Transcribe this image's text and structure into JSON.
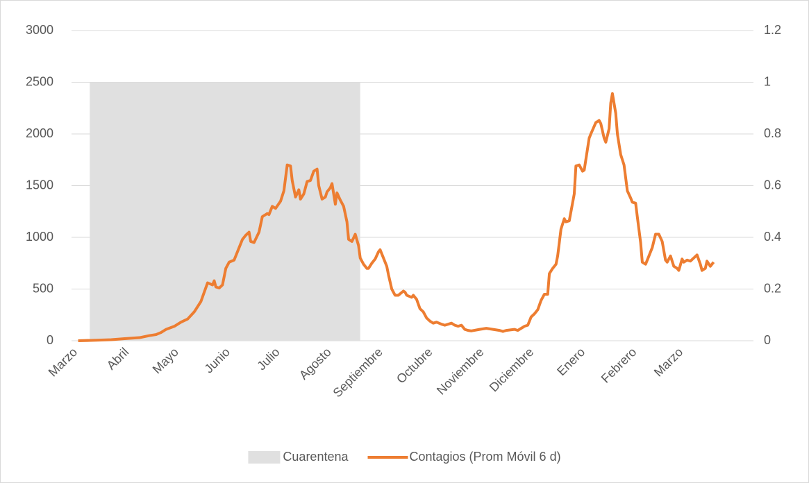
{
  "chart_data": {
    "type": "line",
    "xlim": [
      0,
      411
    ],
    "xticks": [
      {
        "value": 0,
        "label": "Marzo"
      },
      {
        "value": 31,
        "label": "Abril"
      },
      {
        "value": 61,
        "label": "Mayo"
      },
      {
        "value": 92,
        "label": "Junio"
      },
      {
        "value": 122,
        "label": "Julio"
      },
      {
        "value": 153,
        "label": "Agosto"
      },
      {
        "value": 184,
        "label": "Septiembre"
      },
      {
        "value": 214,
        "label": "Octubre"
      },
      {
        "value": 245,
        "label": "Noviembre"
      },
      {
        "value": 275,
        "label": "Diciembre"
      },
      {
        "value": 306,
        "label": "Enero"
      },
      {
        "value": 337,
        "label": "Febrero"
      },
      {
        "value": 365,
        "label": "Marzo"
      }
    ],
    "ylim": [
      0,
      3000
    ],
    "yticks": [
      0,
      500,
      1000,
      1500,
      2000,
      2500,
      3000
    ],
    "y2lim": [
      0,
      1.2
    ],
    "y2ticks": [
      0,
      0.2,
      0.4,
      0.6,
      0.8,
      1,
      1.2
    ],
    "grid": true,
    "legend": "bottom",
    "series": [
      {
        "name": "Cuarentena",
        "type": "area",
        "axis": "y2",
        "color": "#e0e0e0",
        "x": [
          11,
          174
        ],
        "values": [
          1,
          1
        ]
      },
      {
        "name": "Contagios (Prom Móvil 6 d)",
        "type": "line",
        "color": "#ed7d31",
        "x": [
          4,
          15,
          24,
          32,
          41,
          47,
          51,
          54,
          57,
          62,
          66,
          70,
          74,
          78,
          80,
          82,
          85,
          86,
          87,
          89,
          91,
          93,
          95,
          98,
          101,
          103,
          105,
          107,
          108,
          110,
          113,
          115,
          118,
          119,
          121,
          123,
          126,
          128,
          130,
          132,
          133,
          135,
          137,
          138,
          140,
          142,
          144,
          146,
          148,
          149,
          151,
          153,
          154,
          156,
          157,
          159,
          160,
          162,
          164,
          166,
          167,
          169,
          171,
          173,
          174,
          176,
          178,
          179,
          181,
          183,
          185,
          186,
          188,
          190,
          191,
          193,
          195,
          197,
          200,
          201,
          202,
          205,
          206,
          208,
          210,
          212,
          214,
          216,
          218,
          220,
          223,
          225,
          227,
          229,
          231,
          233,
          235,
          237,
          239,
          241,
          246,
          250,
          254,
          258,
          260,
          262,
          267,
          269,
          271,
          273,
          275,
          277,
          279,
          281,
          283,
          285,
          287,
          288,
          290,
          292,
          293,
          295,
          297,
          298,
          300,
          303,
          304,
          306,
          308,
          309,
          312,
          313,
          316,
          318,
          319,
          321,
          322,
          324,
          325,
          326,
          328,
          329,
          331,
          333,
          335,
          337,
          338,
          340,
          341,
          343,
          344,
          346,
          348,
          350,
          352,
          354,
          356,
          358,
          359,
          361,
          363,
          365,
          366,
          368,
          369,
          371,
          373,
          375,
          377,
          379,
          380,
          382,
          383,
          385,
          387
        ],
        "values": [
          0,
          5,
          10,
          20,
          30,
          50,
          60,
          80,
          110,
          140,
          180,
          210,
          280,
          380,
          470,
          560,
          540,
          580,
          520,
          510,
          540,
          700,
          760,
          780,
          900,
          980,
          1020,
          1050,
          960,
          950,
          1050,
          1200,
          1230,
          1220,
          1300,
          1280,
          1350,
          1450,
          1700,
          1690,
          1550,
          1390,
          1460,
          1370,
          1420,
          1540,
          1550,
          1640,
          1660,
          1500,
          1370,
          1390,
          1440,
          1480,
          1520,
          1320,
          1430,
          1360,
          1300,
          1150,
          980,
          960,
          1030,
          920,
          800,
          740,
          700,
          700,
          750,
          790,
          860,
          880,
          800,
          720,
          640,
          500,
          440,
          440,
          480,
          470,
          440,
          420,
          440,
          400,
          310,
          280,
          220,
          190,
          170,
          180,
          160,
          150,
          160,
          170,
          150,
          140,
          150,
          110,
          100,
          95,
          110,
          120,
          110,
          100,
          90,
          100,
          110,
          100,
          120,
          140,
          150,
          230,
          260,
          300,
          390,
          450,
          450,
          650,
          700,
          740,
          820,
          1080,
          1180,
          1150,
          1160,
          1420,
          1690,
          1700,
          1640,
          1650,
          1960,
          2000,
          2110,
          2130,
          2100,
          1960,
          1920,
          2050,
          2300,
          2390,
          2200,
          2000,
          1800,
          1700,
          1450,
          1380,
          1340,
          1330,
          1200,
          950,
          760,
          740,
          820,
          900,
          1030,
          1030,
          960,
          780,
          760,
          820,
          720,
          700,
          680,
          790,
          760,
          780,
          770,
          800,
          830,
          740,
          680,
          700,
          770,
          720,
          760
        ]
      }
    ]
  }
}
